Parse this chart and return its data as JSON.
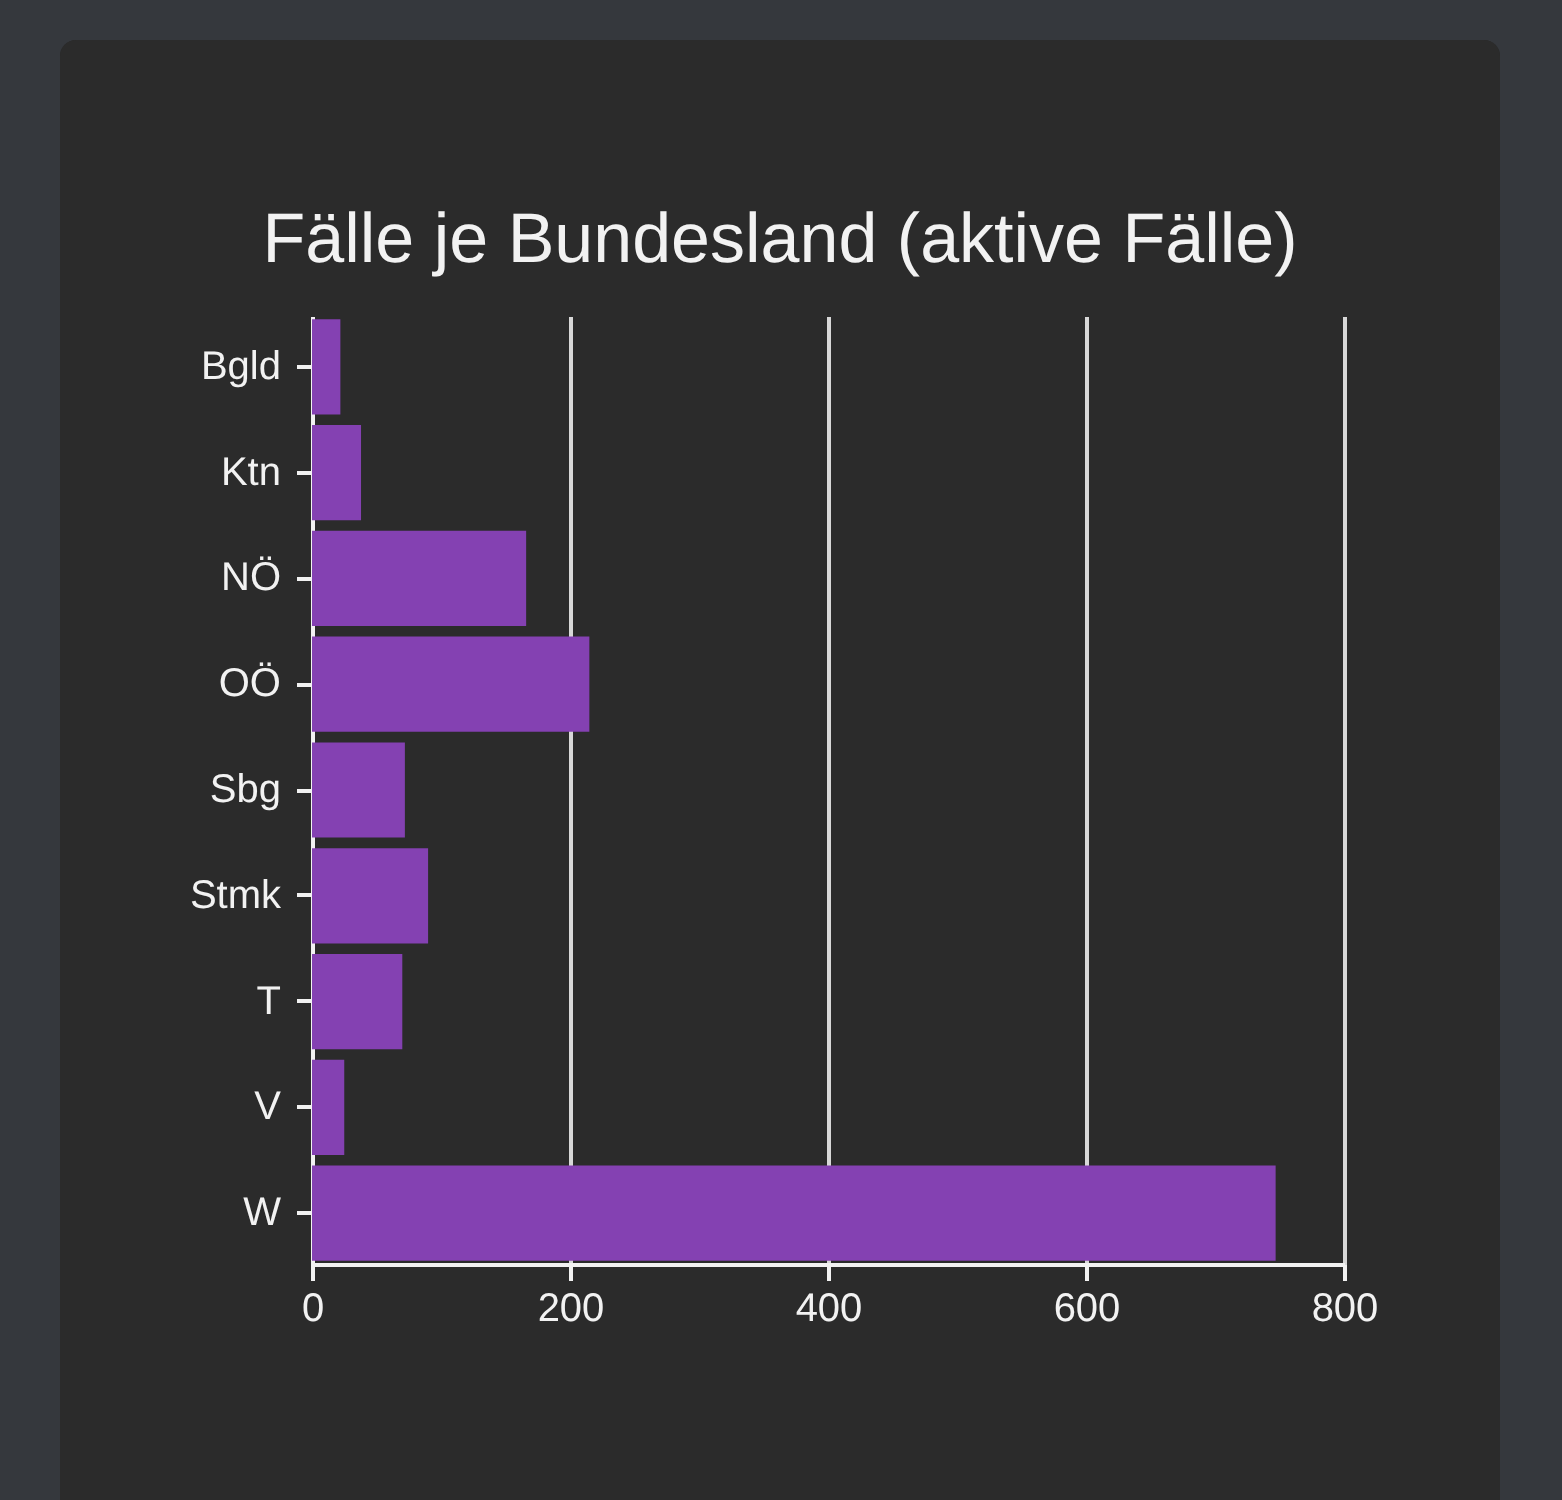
{
  "chart_data": {
    "type": "bar",
    "orientation": "horizontal",
    "title": "Fälle je Bundesland (aktive Fälle)",
    "categories": [
      "Bgld",
      "Ktn",
      "NÖ",
      "OÖ",
      "Sbg",
      "Stmk",
      "T",
      "V",
      "W"
    ],
    "values": [
      22,
      38,
      166,
      215,
      72,
      90,
      70,
      25,
      747
    ],
    "color": "#8441b2",
    "xlim": [
      0,
      800
    ],
    "xticks": [
      0,
      200,
      400,
      600,
      800
    ],
    "grid": "x"
  }
}
